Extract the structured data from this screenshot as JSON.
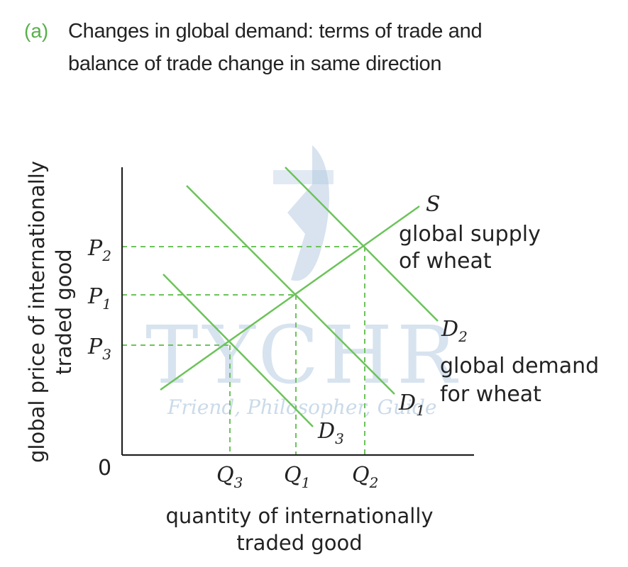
{
  "title": {
    "tag": "(a)",
    "line1": "Changes in global demand: terms of trade and",
    "line2": "balance of trade change in same direction"
  },
  "axes": {
    "y_title_line1": "global price of internationally",
    "y_title_line2": "traded good",
    "x_title_line1": "quantity of internationally",
    "x_title_line2": "traded good",
    "origin": "0"
  },
  "price_labels": [
    {
      "base": "P",
      "sub": "2"
    },
    {
      "base": "P",
      "sub": "1"
    },
    {
      "base": "P",
      "sub": "3"
    }
  ],
  "quantity_labels": [
    {
      "base": "Q",
      "sub": "3"
    },
    {
      "base": "Q",
      "sub": "1"
    },
    {
      "base": "Q",
      "sub": "2"
    }
  ],
  "curves": {
    "supply": {
      "name": "S",
      "desc_line1": "global supply",
      "desc_line2": "of wheat"
    },
    "d2": {
      "base": "D",
      "sub": "2"
    },
    "d1": {
      "base": "D",
      "sub": "1"
    },
    "d3": {
      "base": "D",
      "sub": "3"
    },
    "demand_desc_line1": "global demand",
    "demand_desc_line2": "for wheat"
  },
  "watermark": {
    "brand": "TYCHR",
    "tagline": "Friend, Philosopher, Guide"
  },
  "colors": {
    "curve": "#6cc35a",
    "guide": "#6cc35a",
    "axis": "#222222",
    "accent": "#58b04b"
  }
}
